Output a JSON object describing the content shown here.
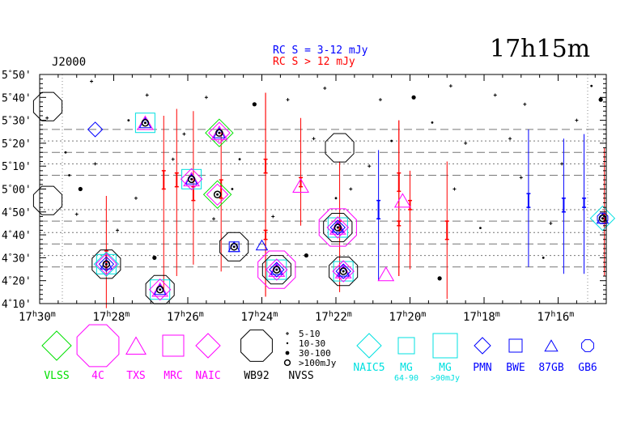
{
  "chart_data": {
    "type": "scatter",
    "title": "17h15m",
    "epoch_label": "J2000",
    "rc_labels": [
      {
        "text": "RC S = 3-12 mJy",
        "color": "#0000ff"
      },
      {
        "text": "RC S > 12 mJy",
        "color": "#ff0000"
      }
    ],
    "x_axis": {
      "unit": "RA (J2000)",
      "range_minutes": [
        1770,
        1754.7
      ],
      "ticks": [
        {
          "value": 1770,
          "h": "17",
          "m": "30"
        },
        {
          "value": 1768,
          "h": "17",
          "m": "28"
        },
        {
          "value": 1766,
          "h": "17",
          "m": "26"
        },
        {
          "value": 1764,
          "h": "17",
          "m": "24"
        },
        {
          "value": 1762,
          "h": "17",
          "m": "22"
        },
        {
          "value": 1760,
          "h": "17",
          "m": "20"
        },
        {
          "value": 1758,
          "h": "17",
          "m": "18"
        },
        {
          "value": 1756,
          "h": "17",
          "m": "16"
        }
      ]
    },
    "y_axis": {
      "unit": "Dec (arcmin)",
      "range_arcmin": [
        250,
        350
      ],
      "ticks": [
        {
          "value": 350,
          "deg": "5",
          "min": "50'"
        },
        {
          "value": 340,
          "deg": "5",
          "min": "40'"
        },
        {
          "value": 330,
          "deg": "5",
          "min": "30'"
        },
        {
          "value": 320,
          "deg": "5",
          "min": "20'"
        },
        {
          "value": 310,
          "deg": "5",
          "min": "10'"
        },
        {
          "value": 300,
          "deg": "5",
          "min": "00'"
        },
        {
          "value": 290,
          "deg": "4",
          "min": "50'"
        },
        {
          "value": 280,
          "deg": "4",
          "min": "40'"
        },
        {
          "value": 270,
          "deg": "4",
          "min": "30'"
        },
        {
          "value": 260,
          "deg": "4",
          "min": "20'"
        },
        {
          "value": 250,
          "deg": "4",
          "min": "10'"
        }
      ]
    },
    "strip_lines": [
      {
        "dec": 326,
        "style": "dashed"
      },
      {
        "dec": 321,
        "style": "dotted"
      },
      {
        "dec": 316,
        "style": "dashed"
      },
      {
        "dec": 311,
        "style": "dotted"
      },
      {
        "dec": 306,
        "style": "dashed"
      },
      {
        "dec": 291,
        "style": "dotted"
      },
      {
        "dec": 286,
        "style": "dashed"
      },
      {
        "dec": 281,
        "style": "dotted"
      },
      {
        "dec": 276,
        "style": "dashed"
      },
      {
        "dec": 271,
        "style": "dotted"
      },
      {
        "dec": 266,
        "style": "dashed"
      }
    ],
    "strong_sources": [
      {
        "ra": 1768.2,
        "dec": 267.2,
        "marks": [
          "WB92",
          "MG",
          "NAIC5",
          "NAIC",
          "87GB",
          "PMN",
          "nvss_big"
        ]
      },
      {
        "ra": 1767.15,
        "dec": 328.9,
        "marks": [
          "MG",
          "TXS",
          "87GB",
          "nvss_big"
        ]
      },
      {
        "ra": 1768.5,
        "dec": 326.0,
        "marks": [
          "PMN"
        ]
      },
      {
        "ra": 1766.75,
        "dec": 256.1,
        "marks": [
          "WB92",
          "MG",
          "NAIC",
          "TXS",
          "87GB",
          "nvss_big"
        ]
      },
      {
        "ra": 1765.9,
        "dec": 304.3,
        "marks": [
          "MG",
          "NAIC",
          "TXS",
          "87GB",
          "nvss_big"
        ]
      },
      {
        "ra": 1765.15,
        "dec": 324.5,
        "marks": [
          "VLSS",
          "NAIC",
          "TXS",
          "87GB",
          "nvss_big"
        ]
      },
      {
        "ra": 1765.2,
        "dec": 297.6,
        "marks": [
          "VLSS",
          "NAIC",
          "nvss_big"
        ]
      },
      {
        "ra": 1764.75,
        "dec": 274.8,
        "marks": [
          "WB92",
          "BWE",
          "87GB",
          "nvss_big"
        ]
      },
      {
        "ra": 1763.6,
        "dec": 264.8,
        "marks": [
          "4C",
          "WB92",
          "MG",
          "NAIC",
          "TXS",
          "87GB",
          "PMN",
          "nvss_big"
        ]
      },
      {
        "ra": 1764.0,
        "dec": 275.5,
        "marks": [
          "87GB"
        ]
      },
      {
        "ra": 1762.95,
        "dec": 301.5,
        "marks": [
          "TXS"
        ]
      },
      {
        "ra": 1761.95,
        "dec": 283.2,
        "marks": [
          "4C",
          "WB92",
          "MG",
          "NAIC",
          "TXS",
          "87GB",
          "PMN",
          "nvss_big"
        ]
      },
      {
        "ra": 1761.9,
        "dec": 318.0,
        "marks": [
          "WB92"
        ]
      },
      {
        "ra": 1761.8,
        "dec": 264.1,
        "marks": [
          "WB92",
          "MG",
          "NAIC",
          "TXS",
          "87GB",
          "PMN",
          "nvss_big"
        ]
      },
      {
        "ra": 1760.65,
        "dec": 262.9,
        "marks": [
          "TXS"
        ]
      },
      {
        "ra": 1760.2,
        "dec": 295.0,
        "marks": [
          "TXS"
        ]
      },
      {
        "ra": 1754.8,
        "dec": 287.2,
        "marks": [
          "NAIC5",
          "87GB",
          "GB6",
          "nvss_big"
        ]
      }
    ],
    "error_bars": [
      {
        "ra": 1768.2,
        "dec": 268,
        "lo": 248,
        "hi": 297,
        "color": "#ff0000",
        "cap": 269,
        "capdy": 4
      },
      {
        "ra": 1766.65,
        "dec": 304,
        "lo": 255,
        "hi": 332,
        "color": "#ff0000",
        "cap": 304,
        "capdy": 4
      },
      {
        "ra": 1766.3,
        "dec": 304,
        "lo": 262,
        "hi": 335,
        "color": "#ff0000",
        "cap": 304,
        "capdy": 3
      },
      {
        "ra": 1765.85,
        "dec": 298,
        "lo": 267,
        "hi": 334,
        "color": "#ff0000",
        "cap": 298,
        "capdy": 3
      },
      {
        "ra": 1765.1,
        "dec": 298,
        "lo": 264,
        "hi": 325,
        "color": "#ff0000",
        "cap": 300,
        "capdy": 4
      },
      {
        "ra": 1763.9,
        "dec": 310,
        "lo": 253,
        "hi": 342,
        "color": "#ff0000",
        "cap": 310,
        "capdy": 3
      },
      {
        "ra": 1763.9,
        "dec": 280,
        "lo": 253,
        "hi": 342,
        "color": "#ff0000",
        "cap": 280,
        "capdy": 2
      },
      {
        "ra": 1762.95,
        "dec": 303,
        "lo": 284,
        "hi": 331,
        "color": "#ff0000",
        "cap": 303,
        "capdy": 2
      },
      {
        "ra": 1761.9,
        "dec": 283,
        "lo": 255,
        "hi": 312,
        "color": "#ff0000",
        "cap": 284,
        "capdy": 2
      },
      {
        "ra": 1760.85,
        "dec": 291,
        "lo": 260,
        "hi": 317,
        "color": "#0000ff",
        "cap": 291,
        "capdy": 4
      },
      {
        "ra": 1760.3,
        "dec": 303,
        "lo": 262,
        "hi": 330,
        "color": "#ff0000",
        "cap": 303,
        "capdy": 4
      },
      {
        "ra": 1760.3,
        "dec": 285,
        "lo": 262,
        "hi": 330,
        "color": "#ff0000",
        "cap": 285,
        "capdy": 1
      },
      {
        "ra": 1760.0,
        "dec": 293,
        "lo": 265,
        "hi": 308,
        "color": "#ff0000",
        "cap": 293,
        "capdy": 2
      },
      {
        "ra": 1759.0,
        "dec": 282,
        "lo": 252,
        "hi": 312,
        "color": "#ff0000",
        "cap": 282,
        "capdy": 4
      },
      {
        "ra": 1756.8,
        "dec": 295,
        "lo": 266,
        "hi": 326,
        "color": "#0000ff",
        "cap": 295,
        "capdy": 3
      },
      {
        "ra": 1755.85,
        "dec": 293,
        "lo": 263,
        "hi": 322,
        "color": "#0000ff",
        "cap": 293,
        "capdy": 3
      },
      {
        "ra": 1755.3,
        "dec": 294,
        "lo": 263,
        "hi": 324,
        "color": "#0000ff",
        "cap": 294,
        "capdy": 2
      },
      {
        "ra": 1754.75,
        "dec": 287,
        "lo": 262,
        "hi": 318,
        "color": "#ff0000",
        "cap": 287,
        "capdy": 2
      }
    ],
    "nvss_points": [
      {
        "ra": 1769.8,
        "dec": 331,
        "s": 1
      },
      {
        "ra": 1769.3,
        "dec": 316,
        "s": 2
      },
      {
        "ra": 1769.2,
        "dec": 306,
        "s": 2
      },
      {
        "ra": 1768.9,
        "dec": 300,
        "s": 3
      },
      {
        "ra": 1768.6,
        "dec": 347,
        "s": 1
      },
      {
        "ra": 1768.5,
        "dec": 311,
        "s": 1
      },
      {
        "ra": 1767.9,
        "dec": 282,
        "s": 1
      },
      {
        "ra": 1767.6,
        "dec": 330,
        "s": 2
      },
      {
        "ra": 1767.1,
        "dec": 341,
        "s": 1
      },
      {
        "ra": 1766.9,
        "dec": 270,
        "s": 3
      },
      {
        "ra": 1766.4,
        "dec": 313,
        "s": 1
      },
      {
        "ra": 1766.1,
        "dec": 324,
        "s": 1
      },
      {
        "ra": 1765.5,
        "dec": 340,
        "s": 1
      },
      {
        "ra": 1765.3,
        "dec": 287,
        "s": 1
      },
      {
        "ra": 1764.8,
        "dec": 300,
        "s": 2
      },
      {
        "ra": 1764.6,
        "dec": 313,
        "s": 2
      },
      {
        "ra": 1764.2,
        "dec": 337,
        "s": 3
      },
      {
        "ra": 1763.7,
        "dec": 288,
        "s": 1
      },
      {
        "ra": 1763.3,
        "dec": 339,
        "s": 1
      },
      {
        "ra": 1762.8,
        "dec": 271,
        "s": 3
      },
      {
        "ra": 1762.6,
        "dec": 322,
        "s": 1
      },
      {
        "ra": 1762.3,
        "dec": 344,
        "s": 1
      },
      {
        "ra": 1761.6,
        "dec": 300,
        "s": 1
      },
      {
        "ra": 1761.1,
        "dec": 310,
        "s": 1
      },
      {
        "ra": 1760.8,
        "dec": 339,
        "s": 1
      },
      {
        "ra": 1760.5,
        "dec": 321,
        "s": 2
      },
      {
        "ra": 1759.9,
        "dec": 340,
        "s": 3
      },
      {
        "ra": 1759.4,
        "dec": 329,
        "s": 2
      },
      {
        "ra": 1759.2,
        "dec": 261,
        "s": 3
      },
      {
        "ra": 1758.9,
        "dec": 345,
        "s": 1
      },
      {
        "ra": 1758.5,
        "dec": 320,
        "s": 1
      },
      {
        "ra": 1758.1,
        "dec": 283,
        "s": 2
      },
      {
        "ra": 1757.7,
        "dec": 341,
        "s": 1
      },
      {
        "ra": 1757.3,
        "dec": 322,
        "s": 1
      },
      {
        "ra": 1756.9,
        "dec": 337,
        "s": 1
      },
      {
        "ra": 1756.4,
        "dec": 270,
        "s": 2
      },
      {
        "ra": 1755.9,
        "dec": 311,
        "s": 1
      },
      {
        "ra": 1755.5,
        "dec": 330,
        "s": 1
      },
      {
        "ra": 1755.1,
        "dec": 345,
        "s": 2
      },
      {
        "ra": 1754.85,
        "dec": 339,
        "s": 3
      },
      {
        "ra": 1769.0,
        "dec": 289,
        "s": 1
      },
      {
        "ra": 1767.4,
        "dec": 296,
        "s": 1
      },
      {
        "ra": 1762.0,
        "dec": 296,
        "s": 2
      },
      {
        "ra": 1758.8,
        "dec": 300,
        "s": 1
      },
      {
        "ra": 1757.0,
        "dec": 305,
        "s": 1
      },
      {
        "ra": 1756.2,
        "dec": 285,
        "s": 1
      }
    ]
  },
  "legend": {
    "items": [
      {
        "label": "VLSS",
        "sub": "",
        "shape": "diamond",
        "color": "#00e000",
        "label_color": "#00e000",
        "size": 18
      },
      {
        "label": "4C",
        "sub": "",
        "shape": "octagon",
        "color": "#ff00ff",
        "label_color": "#ff00ff",
        "size": 28
      },
      {
        "label": "TXS",
        "sub": "",
        "shape": "triangle",
        "color": "#ff00ff",
        "label_color": "#ff00ff",
        "size": 14
      },
      {
        "label": "MRC",
        "sub": "",
        "shape": "square",
        "color": "#ff00ff",
        "label_color": "#ff00ff",
        "size": 13
      },
      {
        "label": "NAIC",
        "sub": "",
        "shape": "diamond",
        "color": "#ff00ff",
        "label_color": "#ff00ff",
        "size": 15
      },
      {
        "label": "WB92",
        "sub": "",
        "shape": "octagon",
        "color": "#000000",
        "label_color": "#000000",
        "size": 21
      },
      {
        "label": "NVSS",
        "sub": "",
        "shape": "nvss",
        "color": "#000000",
        "label_color": "#000000",
        "size": 0
      },
      {
        "label": "NAIC5",
        "sub": "",
        "shape": "diamond",
        "color": "#00e0e0",
        "label_color": "#00e0e0",
        "size": 15
      },
      {
        "label": "MG",
        "sub": "64-90",
        "shape": "square",
        "color": "#00e0e0",
        "label_color": "#00e0e0",
        "size": 10
      },
      {
        "label": "MG",
        "sub": ">90mJy",
        "shape": "square",
        "color": "#00e0e0",
        "label_color": "#00e0e0",
        "size": 15
      },
      {
        "label": "PMN",
        "sub": "",
        "shape": "diamond",
        "color": "#0000ff",
        "label_color": "#0000ff",
        "size": 10
      },
      {
        "label": "BWE",
        "sub": "",
        "shape": "square",
        "color": "#0000ff",
        "label_color": "#0000ff",
        "size": 8
      },
      {
        "label": "87GB",
        "sub": "",
        "shape": "triangle",
        "color": "#0000ff",
        "label_color": "#0000ff",
        "size": 9
      },
      {
        "label": "GB6",
        "sub": "",
        "shape": "octagon",
        "color": "#0000ff",
        "label_color": "#0000ff",
        "size": 8
      }
    ],
    "nvss_scale": [
      "5-10",
      "10-30",
      "30-100",
      ">100mJy"
    ]
  }
}
